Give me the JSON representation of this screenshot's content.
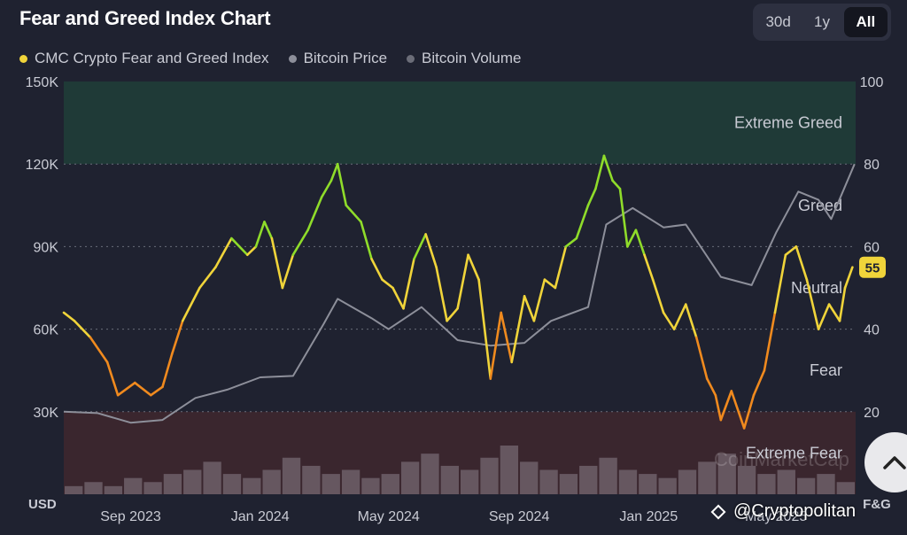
{
  "header": {
    "title": "Fear and Greed Index Chart",
    "range_buttons": [
      "30d",
      "1y",
      "All"
    ],
    "active_range": "All"
  },
  "legend": {
    "items": [
      {
        "label": "CMC Crypto Fear and Greed Index",
        "color": "#f0d43a"
      },
      {
        "label": "Bitcoin Price",
        "color": "#8d8f9a"
      },
      {
        "label": "Bitcoin Volume",
        "color": "#6b6d78"
      }
    ]
  },
  "colors": {
    "background": "#1f2230",
    "extreme_greed_band": "#1f3a37",
    "extreme_fear_band": "#3a262e",
    "price_line": "#8d8f9a",
    "volume_bars": "#8a7f8a",
    "extreme_greed": "#2ecf8a",
    "greed": "#8fdc2a",
    "neutral": "#f0d43a",
    "fear": "#f08a1e",
    "extreme_fear": "#e63a3a"
  },
  "chart_data": {
    "type": "line",
    "title": "Fear and Greed Index Chart",
    "left_axis": {
      "label": "USD",
      "ticks": [
        "30K",
        "60K",
        "90K",
        "120K",
        "150K"
      ],
      "ylim": [
        0,
        150000
      ]
    },
    "right_axis": {
      "label": "F&G",
      "ticks": [
        "20",
        "40",
        "60",
        "80",
        "100"
      ],
      "ylim": [
        0,
        100
      ]
    },
    "x_ticks": [
      "Sep 2023",
      "Jan 2024",
      "May 2024",
      "Sep 2024",
      "Jan 2025",
      "May 2025"
    ],
    "x_range": [
      "2023-06-30",
      "2025-07-15"
    ],
    "zones": [
      {
        "label": "Extreme Greed",
        "range": [
          80,
          100
        ]
      },
      {
        "label": "Greed",
        "range": [
          60,
          80
        ]
      },
      {
        "label": "Neutral",
        "range": [
          40,
          60
        ]
      },
      {
        "label": "Fear",
        "range": [
          20,
          40
        ]
      },
      {
        "label": "Extreme Fear",
        "range": [
          0,
          20
        ]
      }
    ],
    "current_value": "55",
    "grid": true,
    "series": [
      {
        "name": "CMC Crypto Fear and Greed Index",
        "axis": "right",
        "x": [
          "2023-06-30",
          "2023-07-10",
          "2023-07-25",
          "2023-08-10",
          "2023-08-20",
          "2023-09-05",
          "2023-09-20",
          "2023-10-01",
          "2023-10-10",
          "2023-10-20",
          "2023-11-05",
          "2023-11-20",
          "2023-12-05",
          "2023-12-20",
          "2023-12-28",
          "2024-01-05",
          "2024-01-12",
          "2024-01-22",
          "2024-02-01",
          "2024-02-15",
          "2024-02-28",
          "2024-03-08",
          "2024-03-14",
          "2024-03-22",
          "2024-04-05",
          "2024-04-15",
          "2024-04-25",
          "2024-05-05",
          "2024-05-15",
          "2024-05-25",
          "2024-06-05",
          "2024-06-15",
          "2024-06-25",
          "2024-07-05",
          "2024-07-15",
          "2024-07-25",
          "2024-08-05",
          "2024-08-15",
          "2024-08-25",
          "2024-09-06",
          "2024-09-15",
          "2024-09-25",
          "2024-10-05",
          "2024-10-15",
          "2024-10-25",
          "2024-11-05",
          "2024-11-12",
          "2024-11-20",
          "2024-11-28",
          "2024-12-05",
          "2024-12-12",
          "2024-12-20",
          "2024-12-28",
          "2025-01-05",
          "2025-01-15",
          "2025-01-25",
          "2025-02-05",
          "2025-02-15",
          "2025-02-25",
          "2025-03-05",
          "2025-03-10",
          "2025-03-20",
          "2025-04-01",
          "2025-04-10",
          "2025-04-20",
          "2025-04-30",
          "2025-05-10",
          "2025-05-20",
          "2025-05-30",
          "2025-06-10",
          "2025-06-20",
          "2025-06-30",
          "2025-07-05",
          "2025-07-12"
        ],
        "values": [
          44,
          42,
          38,
          32,
          24,
          27,
          24,
          26,
          34,
          42,
          50,
          55,
          62,
          58,
          60,
          66,
          62,
          50,
          58,
          64,
          72,
          76,
          80,
          70,
          66,
          57,
          52,
          50,
          45,
          57,
          63,
          55,
          42,
          45,
          58,
          52,
          28,
          44,
          32,
          48,
          42,
          52,
          50,
          60,
          62,
          70,
          74,
          82,
          76,
          74,
          60,
          64,
          58,
          52,
          44,
          40,
          46,
          38,
          28,
          24,
          18,
          25,
          16,
          24,
          30,
          44,
          58,
          60,
          52,
          40,
          46,
          42,
          50,
          55
        ]
      },
      {
        "name": "Bitcoin Price",
        "axis": "left",
        "x": [
          "2023-06-30",
          "2023-08-01",
          "2023-09-01",
          "2023-10-01",
          "2023-11-01",
          "2023-12-01",
          "2024-01-01",
          "2024-02-01",
          "2024-03-01",
          "2024-03-14",
          "2024-04-15",
          "2024-05-01",
          "2024-06-01",
          "2024-07-05",
          "2024-08-05",
          "2024-09-06",
          "2024-10-01",
          "2024-11-05",
          "2024-11-22",
          "2024-12-17",
          "2025-01-15",
          "2025-02-05",
          "2025-03-10",
          "2025-04-08",
          "2025-05-01",
          "2025-05-22",
          "2025-06-10",
          "2025-06-22",
          "2025-07-14"
        ],
        "values": [
          30000,
          29500,
          26000,
          27000,
          35000,
          38000,
          42500,
          43000,
          62000,
          71000,
          64000,
          60000,
          68000,
          56000,
          54000,
          55000,
          63000,
          68000,
          98000,
          104000,
          97000,
          98000,
          79000,
          76000,
          95000,
          110000,
          107000,
          100000,
          120000
        ]
      },
      {
        "name": "Bitcoin Volume",
        "axis": "left",
        "note_units": "relative",
        "values": [
          2,
          3,
          2,
          4,
          3,
          5,
          6,
          8,
          5,
          4,
          6,
          9,
          7,
          5,
          6,
          4,
          5,
          8,
          10,
          7,
          6,
          9,
          12,
          8,
          6,
          5,
          7,
          9,
          6,
          5,
          4,
          6,
          8,
          10,
          7,
          5,
          6,
          4,
          5,
          3
        ]
      }
    ]
  },
  "scroll_top_icon": "chevron-up-icon",
  "watermark": {
    "chart": "CoinMarketCap",
    "credit": "@Cryptopolitan"
  }
}
